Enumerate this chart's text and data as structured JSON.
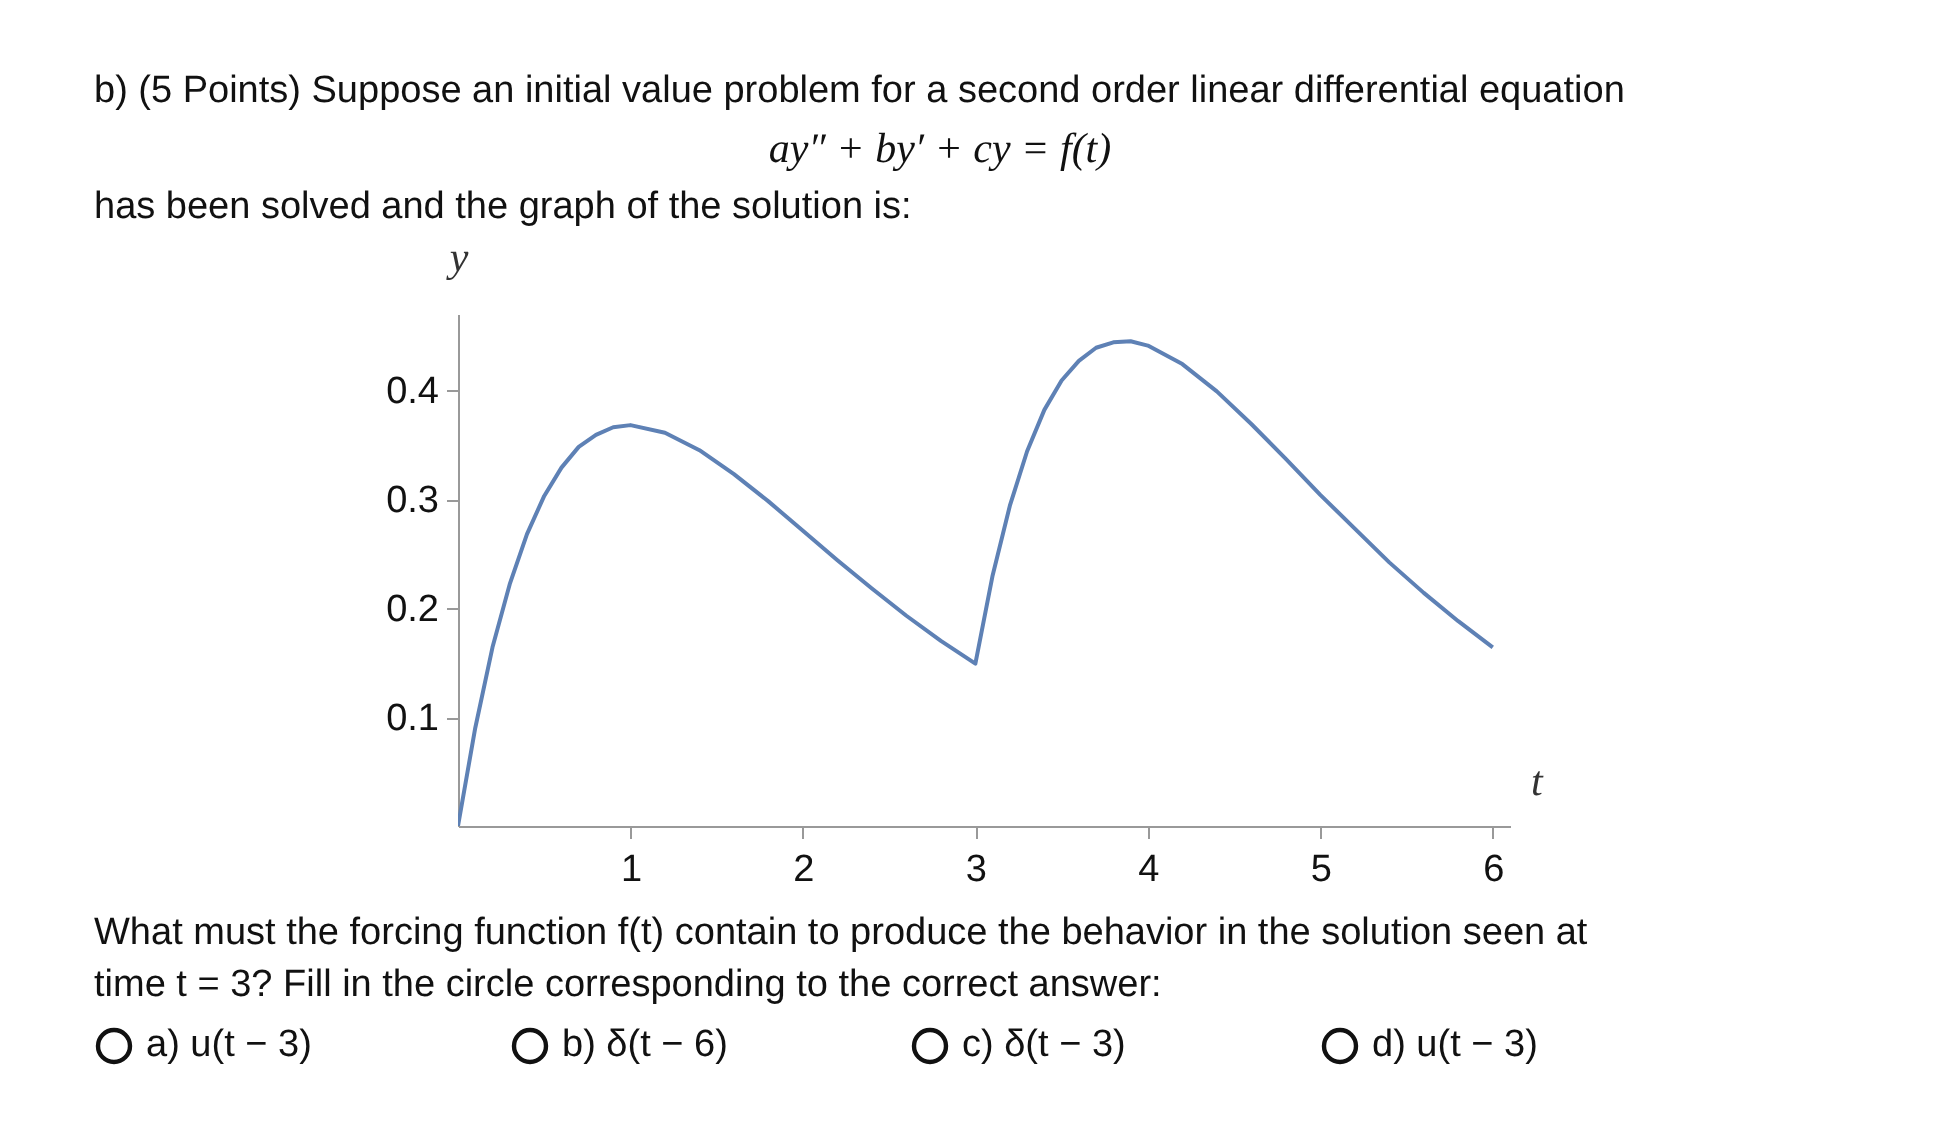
{
  "chart_data": {
    "type": "line",
    "title": "b) (5 Points) Suppose an initial value problem for a second order linear differential equation",
    "xlabel": "t",
    "ylabel": "y",
    "color": "#5e81b5",
    "grid": false,
    "marker": "none",
    "x": [
      0,
      0.1,
      0.2,
      0.3,
      0.4,
      0.5,
      0.6,
      0.7,
      0.8,
      0.9,
      1.0,
      1.2,
      1.4,
      1.6,
      1.8,
      2.0,
      2.2,
      2.4,
      2.6,
      2.8,
      3.0,
      3.1,
      3.2,
      3.3,
      3.4,
      3.5,
      3.6,
      3.7,
      3.8,
      3.9,
      4.0,
      4.2,
      4.4,
      4.6,
      4.8,
      5.0,
      5.2,
      5.4,
      5.6,
      5.8,
      6.0
    ],
    "values": [
      0,
      0.09,
      0.164,
      0.222,
      0.268,
      0.303,
      0.329,
      0.348,
      0.359,
      0.366,
      0.368,
      0.361,
      0.345,
      0.323,
      0.298,
      0.271,
      0.244,
      0.218,
      0.193,
      0.17,
      0.149,
      0.23,
      0.294,
      0.344,
      0.382,
      0.409,
      0.427,
      0.439,
      0.444,
      0.445,
      0.441,
      0.424,
      0.399,
      0.369,
      0.337,
      0.304,
      0.273,
      0.242,
      0.214,
      0.188,
      0.164
    ],
    "xlim": [
      0,
      6.1
    ],
    "ylim": [
      0,
      0.47
    ],
    "xticks": [
      1,
      2,
      3,
      4,
      5,
      6
    ],
    "yticks": [
      0.1,
      0.2,
      0.3,
      0.4
    ],
    "annotations": [
      "ay″ + by′ + cy = f(t)",
      "has been solved and the graph of the solution is:",
      "What must the forcing function f(t) contain to produce the behavior in the solution seen at time t = 3? Fill in the circle corresponding to the correct answer:",
      "a) u(t − 3)",
      "b) δ(t − 6)",
      "c) δ(t − 3)",
      "d) u(t − 3)"
    ]
  }
}
